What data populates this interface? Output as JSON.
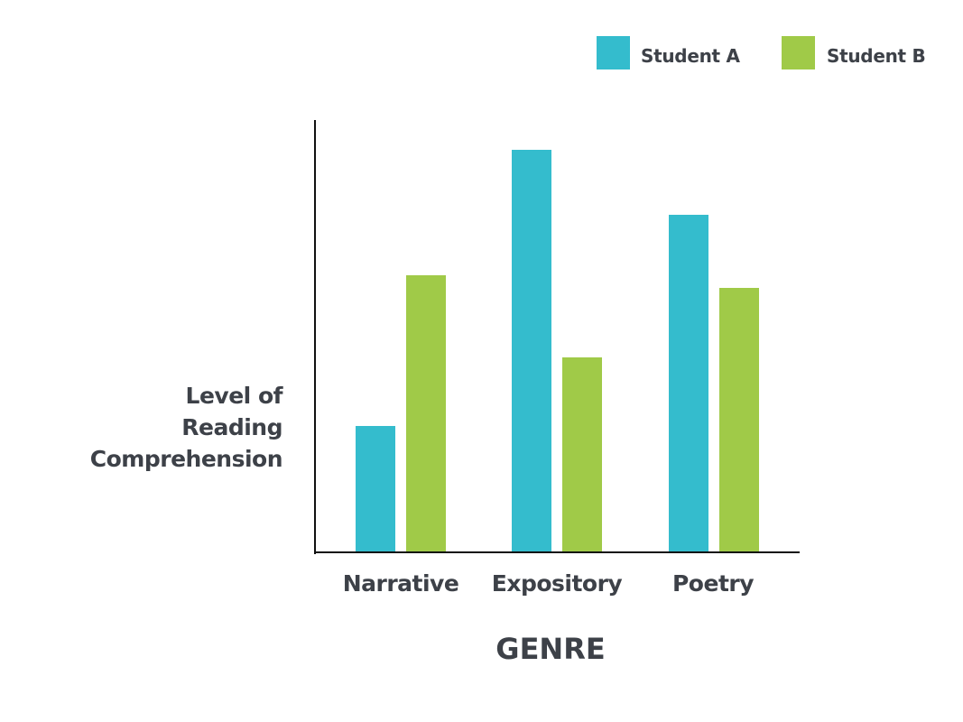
{
  "chart_data": {
    "type": "bar",
    "title": "",
    "xlabel": "GENRE",
    "ylabel": "Level of Reading Comprehension",
    "ylabel_lines": [
      "Level of",
      "Reading",
      "Comprehension"
    ],
    "categories": [
      "Narrative",
      "Expository",
      "Poetry"
    ],
    "series": [
      {
        "name": "Student A",
        "color": "#34bccd",
        "values": [
          29,
          93,
          78
        ]
      },
      {
        "name": "Student B",
        "color": "#a0ca48",
        "values": [
          64,
          45,
          61
        ]
      }
    ],
    "ylim": [
      0,
      100
    ],
    "y_ticks_shown": false,
    "grid": false,
    "legend_position": "top-right",
    "value_note": "relative heights, no numeric axis"
  },
  "legend": [
    {
      "label": "Student A",
      "color": "#34bccd"
    },
    {
      "label": "Student B",
      "color": "#a0ca48"
    }
  ]
}
